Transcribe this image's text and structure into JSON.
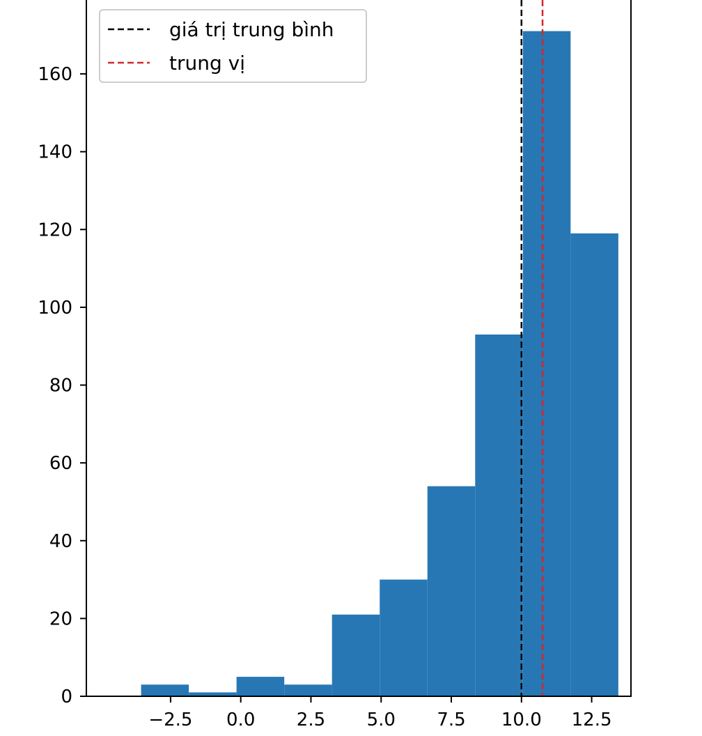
{
  "chart_data": {
    "type": "bar",
    "title": "",
    "xlabel": "",
    "ylabel": "",
    "bins": [
      {
        "start": -3.55,
        "end": -1.85,
        "count": 3
      },
      {
        "start": -1.85,
        "end": -0.15,
        "count": 1
      },
      {
        "start": -0.15,
        "end": 1.55,
        "count": 5
      },
      {
        "start": 1.55,
        "end": 3.25,
        "count": 3
      },
      {
        "start": 3.25,
        "end": 4.95,
        "count": 21
      },
      {
        "start": 4.95,
        "end": 6.65,
        "count": 30
      },
      {
        "start": 6.65,
        "end": 8.35,
        "count": 54
      },
      {
        "start": 8.35,
        "end": 10.05,
        "count": 93
      },
      {
        "start": 10.05,
        "end": 11.75,
        "count": 171
      },
      {
        "start": 11.75,
        "end": 13.45,
        "count": 119
      }
    ],
    "bar_color": "#2777b4",
    "xlim": [
      -5.5,
      13.9
    ],
    "ylim": [
      0,
      179
    ],
    "xticks": [
      {
        "value": -2.5,
        "label": "−2.5"
      },
      {
        "value": 0.0,
        "label": "0.0"
      },
      {
        "value": 2.5,
        "label": "2.5"
      },
      {
        "value": 5.0,
        "label": "5.0"
      },
      {
        "value": 7.5,
        "label": "7.5"
      },
      {
        "value": 10.0,
        "label": "10.0"
      },
      {
        "value": 12.5,
        "label": "12.5"
      }
    ],
    "yticks": [
      {
        "value": 0,
        "label": "0"
      },
      {
        "value": 20,
        "label": "20"
      },
      {
        "value": 40,
        "label": "40"
      },
      {
        "value": 60,
        "label": "60"
      },
      {
        "value": 80,
        "label": "80"
      },
      {
        "value": 100,
        "label": "100"
      },
      {
        "value": 120,
        "label": "120"
      },
      {
        "value": 140,
        "label": "140"
      },
      {
        "value": 160,
        "label": "160"
      }
    ],
    "reference_lines": [
      {
        "label": "giá trị trung bình",
        "value": 10.0,
        "color": "#000000",
        "style": "dashed"
      },
      {
        "label": "trung vị",
        "value": 10.75,
        "color": "#d62728",
        "style": "dashed"
      }
    ],
    "legend_position": "top-left",
    "grid": false
  }
}
